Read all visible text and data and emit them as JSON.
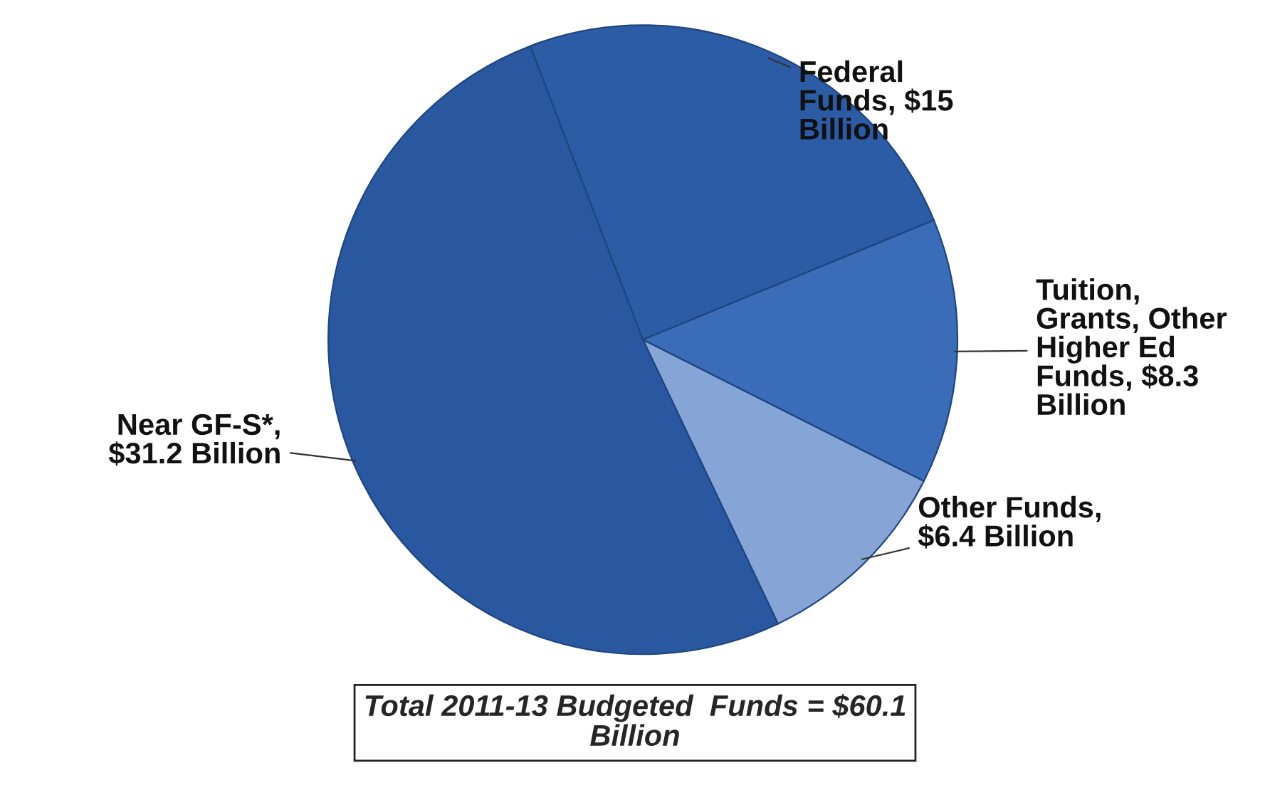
{
  "chart_data": {
    "type": "pie",
    "categories": [
      "Federal\nFunds, $15\nBillion",
      "Tuition,\nGrants, Other\nHigher Ed\nFunds, $8.3\nBillion",
      "Other Funds,\n$6.4 Billion",
      "Near GF-S*,\n$31.2 Billion"
    ],
    "values": [
      15,
      8.3,
      6.4,
      31.2
    ],
    "colors": [
      "#2c5ca6",
      "#3a6cb8",
      "#86a4d6",
      "#2a58a0"
    ],
    "annotations": [
      "Total 2011-13 Budgeted  Funds = $60.1\nBillion"
    ]
  }
}
